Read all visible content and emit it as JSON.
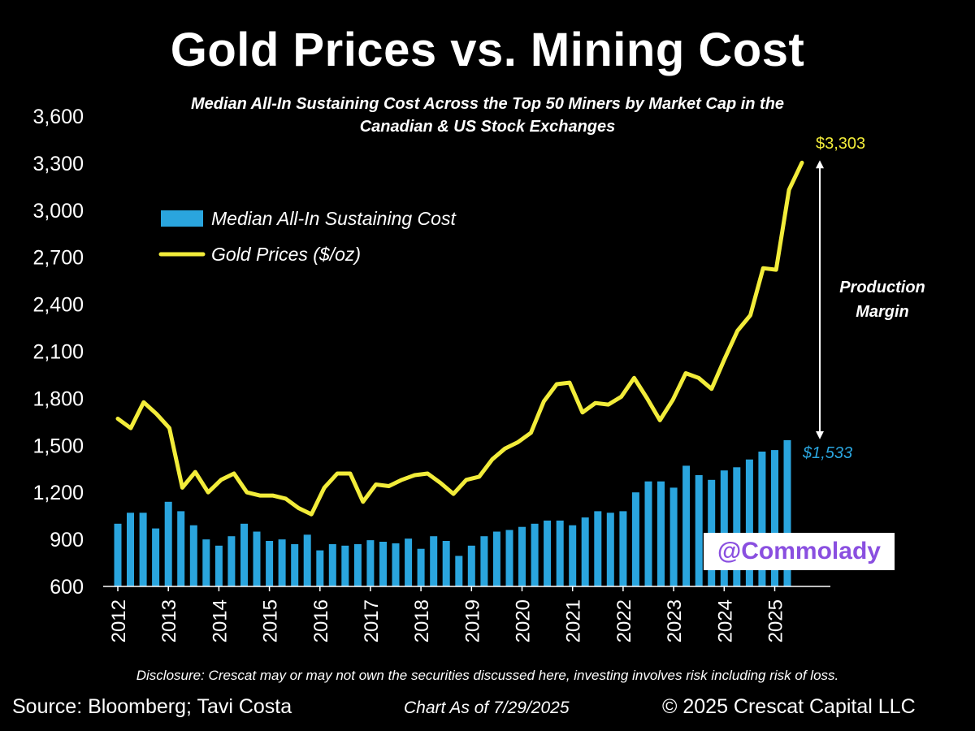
{
  "chart_data": {
    "type": "bar+line",
    "title": "Gold Prices vs. Mining Cost",
    "subtitle": "Median All-In Sustaining Cost Across the Top 50 Miners by Market Cap in the Canadian & US Stock Exchanges",
    "ylim": [
      600,
      3600
    ],
    "yticks": [
      "600",
      "900",
      "1,200",
      "1,500",
      "1,800",
      "2,100",
      "2,400",
      "2,700",
      "3,000",
      "3,300",
      "3,600"
    ],
    "ytick_values": [
      600,
      900,
      1200,
      1500,
      1800,
      2100,
      2400,
      2700,
      3000,
      3300,
      3600
    ],
    "xticks": [
      "2012",
      "2013",
      "2014",
      "2015",
      "2016",
      "2017",
      "2018",
      "2019",
      "2020",
      "2021",
      "2022",
      "2023",
      "2024",
      "2025"
    ],
    "legend": {
      "placement": "top-left",
      "entries": [
        "Median All-In Sustaining Cost",
        "Gold Prices ($/oz)"
      ]
    },
    "series": [
      {
        "name": "Median All-In Sustaining Cost",
        "type": "bar",
        "color": "#2aa5de",
        "values": [
          1000,
          1070,
          1070,
          970,
          1140,
          1080,
          990,
          900,
          860,
          920,
          1000,
          950,
          890,
          900,
          870,
          930,
          830,
          870,
          860,
          870,
          895,
          885,
          875,
          905,
          840,
          920,
          890,
          795,
          860,
          920,
          950,
          960,
          980,
          1000,
          1020,
          1020,
          990,
          1040,
          1080,
          1070,
          1080,
          1200,
          1270,
          1270,
          1230,
          1370,
          1310,
          1280,
          1340,
          1360,
          1410,
          1460,
          1470,
          1533
        ]
      },
      {
        "name": "Gold Prices ($/oz)",
        "type": "line",
        "color": "#f2ec3a",
        "values": [
          1670,
          1610,
          1775,
          1700,
          1610,
          1230,
          1330,
          1200,
          1280,
          1320,
          1200,
          1180,
          1180,
          1160,
          1100,
          1060,
          1230,
          1320,
          1320,
          1140,
          1250,
          1240,
          1280,
          1310,
          1320,
          1260,
          1190,
          1280,
          1300,
          1410,
          1480,
          1520,
          1580,
          1780,
          1890,
          1900,
          1710,
          1770,
          1760,
          1810,
          1930,
          1800,
          1660,
          1790,
          1960,
          1930,
          1860,
          2050,
          2230,
          2330,
          2630,
          2620,
          3130,
          3303
        ]
      }
    ],
    "annotations": {
      "gold_end": "$3,303",
      "cost_end": "$1,533",
      "margin_line1": "Production",
      "margin_line2": "Margin"
    },
    "colors": {
      "bar": "#2aa5de",
      "line": "#f2ec3a",
      "axis": "#ffffff",
      "background": "#000000"
    }
  },
  "watermark": "@Commolady",
  "footer": {
    "disclosure": "Disclosure: Crescat may or may not own the securities discussed here, investing involves risk including risk of loss.",
    "source": "Source: Bloomberg; Tavi Costa",
    "as_of": "Chart As of 7/29/2025",
    "copyright": "© 2025 Crescat Capital LLC"
  }
}
